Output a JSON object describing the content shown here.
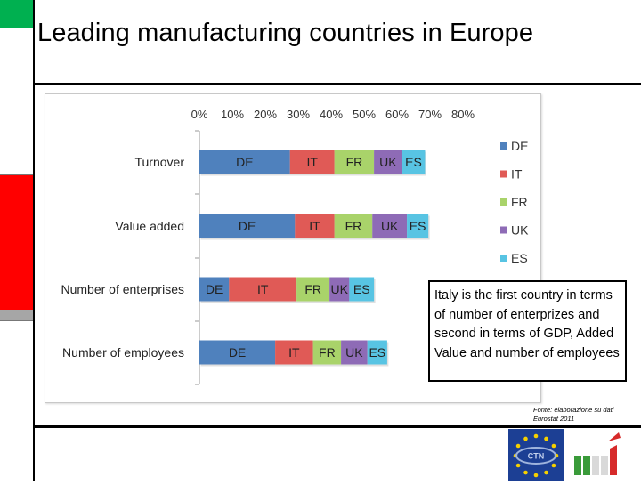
{
  "slide": {
    "title": "Leading manufacturing countries in Europe",
    "callout": "Italy is the first country in terms of number of enterprizes and second in terms of GDP, Added Value and number of employees",
    "source": "Fonte: elaborazione su dati Eurostat 2011",
    "logos": [
      "eu-stars-ctn-logo",
      "italian-flag-logo"
    ]
  },
  "chart_data": {
    "type": "bar",
    "orientation": "horizontal",
    "stacked": true,
    "categories": [
      "Turnover",
      "Value added",
      "Number of enterprises",
      "Number of employees"
    ],
    "x_ticks": [
      "0%",
      "10%",
      "20%",
      "30%",
      "40%",
      "50%",
      "60%",
      "70%",
      "80%"
    ],
    "xlim": [
      0,
      80
    ],
    "legend_position": "right",
    "series": [
      {
        "name": "DE",
        "color": "#4f81bd",
        "values": [
          27.5,
          29,
          9,
          23
        ]
      },
      {
        "name": "IT",
        "color": "#e05a56",
        "values": [
          13.5,
          12,
          20.5,
          11.5
        ]
      },
      {
        "name": "FR",
        "color": "#a9d36a",
        "values": [
          12,
          11.5,
          10,
          8.5
        ]
      },
      {
        "name": "UK",
        "color": "#8e6bb6",
        "values": [
          8.5,
          10.5,
          6,
          8
        ]
      },
      {
        "name": "ES",
        "color": "#58c4e3",
        "values": [
          7,
          6.5,
          7.5,
          6
        ]
      }
    ]
  },
  "side_panel": {
    "colors": [
      "#00b050",
      "#ffffff",
      "#ff0000",
      "#a6a6a6"
    ]
  }
}
